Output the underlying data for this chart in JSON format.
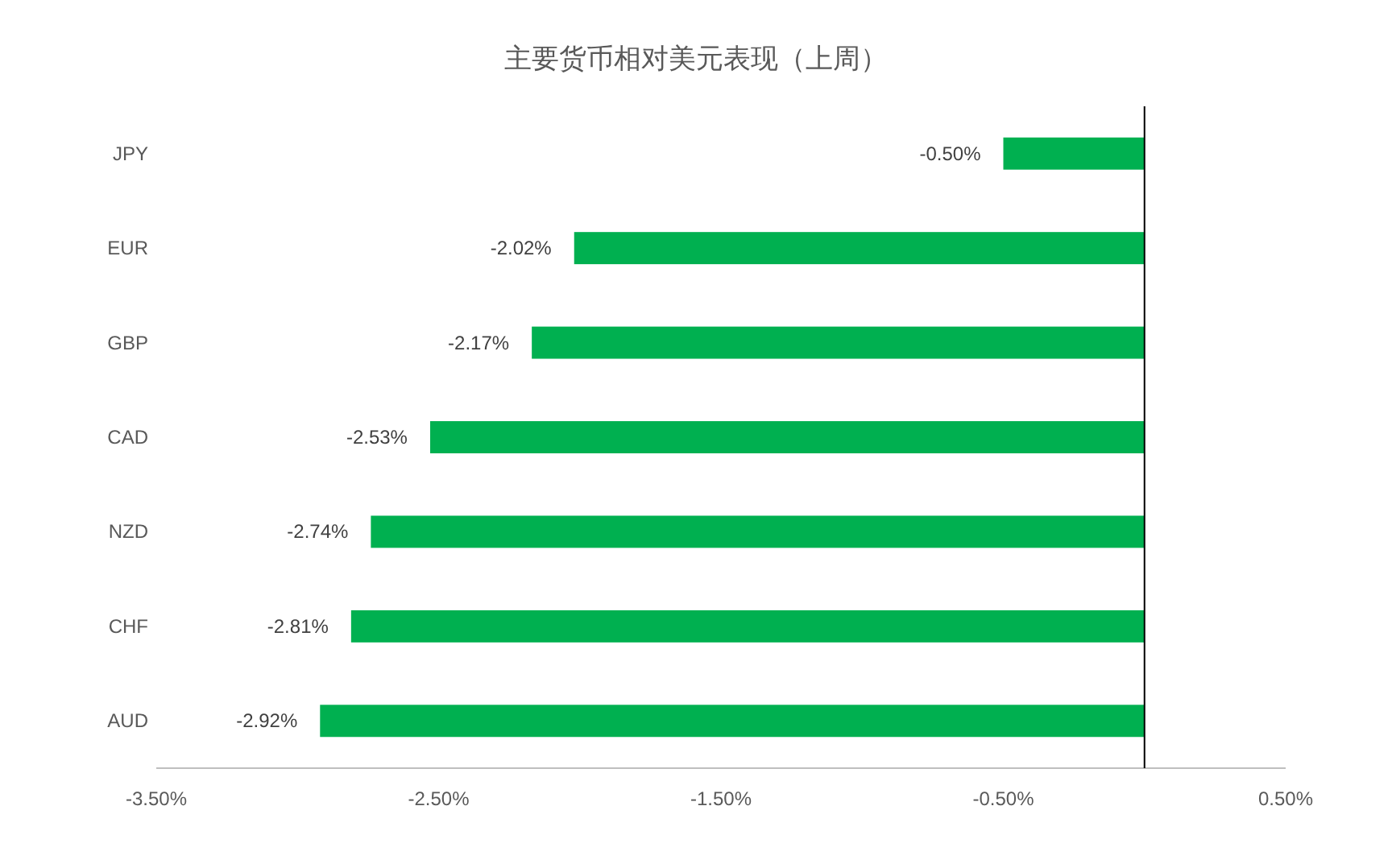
{
  "chart_data": {
    "type": "bar",
    "orientation": "horizontal",
    "title": "主要货币相对美元表现（上周）",
    "categories": [
      "JPY",
      "EUR",
      "GBP",
      "CAD",
      "NZD",
      "CHF",
      "AUD"
    ],
    "values": [
      -0.5,
      -2.02,
      -2.17,
      -2.53,
      -2.74,
      -2.81,
      -2.92
    ],
    "value_labels": [
      "-0.50%",
      "-2.02%",
      "-2.17%",
      "-2.53%",
      "-2.74%",
      "-2.81%",
      "-2.92%"
    ],
    "color": "#00b050",
    "xlim": [
      -3.5,
      0.5
    ],
    "xticks": [
      {
        "value": -3.5,
        "label": "-3.50%"
      },
      {
        "value": -2.5,
        "label": "-2.50%"
      },
      {
        "value": -1.5,
        "label": "-1.50%"
      },
      {
        "value": -0.5,
        "label": "-0.50%"
      },
      {
        "value": 0.5,
        "label": "0.50%"
      }
    ],
    "grid": false
  }
}
